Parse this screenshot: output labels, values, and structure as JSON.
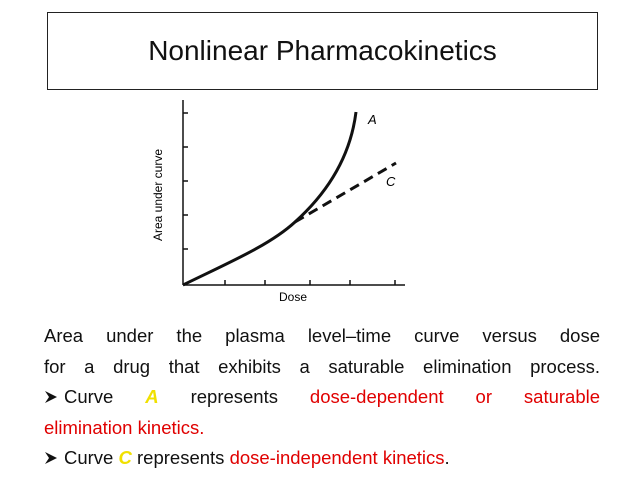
{
  "title": "Nonlinear Pharmacokinetics",
  "figure": {
    "y_label": "Area under curve",
    "x_label": "Dose",
    "curve_labels": [
      "A",
      "C"
    ]
  },
  "body": {
    "paragraph_lines": [
      "Area under the plasma level–time curve versus dose",
      "for a drug that exhibits a saturable elimination process."
    ],
    "bullets": [
      {
        "lead": "Curve",
        "letter": "A",
        "verb": "represents",
        "emphasis_lines": [
          "dose-dependent or saturable",
          "elimination kinetics."
        ]
      },
      {
        "lead": "Curve",
        "letter": "C",
        "verb": "represents",
        "emphasis_lines": [
          "dose-independent kinetics"
        ],
        "end": "."
      }
    ]
  }
}
